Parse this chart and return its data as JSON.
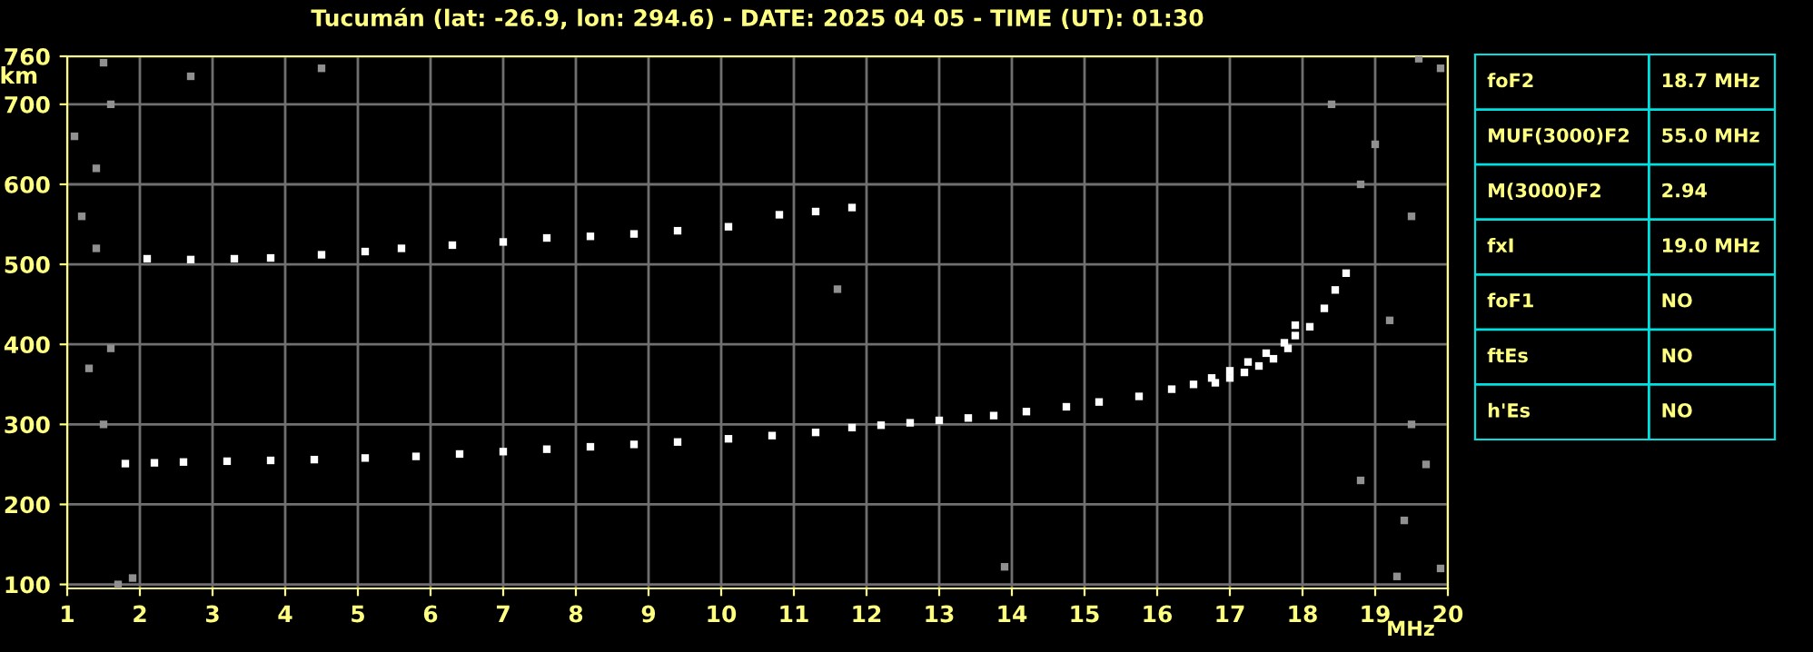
{
  "chart_data": [
    {
      "type": "scatter",
      "title": "Tucumán (lat: -26.9, lon: 294.6) - DATE: 2025 04 05 - TIME (UT): 01:30",
      "xlabel": "MHz",
      "ylabel": "km",
      "xlim": [
        1,
        20
      ],
      "ylim": [
        95,
        760
      ],
      "xticks": [
        1,
        2,
        3,
        4,
        5,
        6,
        7,
        8,
        9,
        10,
        11,
        12,
        13,
        14,
        15,
        16,
        17,
        18,
        19,
        20
      ],
      "yticks": [
        100,
        200,
        300,
        400,
        500,
        600,
        700,
        760
      ],
      "grid": true,
      "marker": "square",
      "series": [
        {
          "color": "#ffffff",
          "x": [
            1.8,
            2.2,
            2.6,
            3.2,
            3.8,
            4.4,
            5.1,
            5.8,
            6.4,
            7.0,
            7.6,
            8.2,
            8.8,
            9.4,
            10.1,
            10.7,
            11.3,
            11.8,
            12.2,
            12.6,
            13.0,
            13.4,
            13.75,
            14.2,
            14.75,
            15.2,
            15.75,
            16.2,
            16.5,
            16.75,
            17.0,
            17.25,
            17.5,
            17.75,
            17.9
          ],
          "values": [
            251,
            252,
            253,
            254,
            255,
            256,
            258,
            260,
            263,
            266,
            269,
            272,
            275,
            278,
            282,
            286,
            290,
            296,
            299,
            302,
            305,
            308,
            311,
            316,
            322,
            328,
            335,
            344,
            350,
            358,
            367,
            378,
            389,
            402,
            424
          ]
        },
        {
          "color": "#ffffff",
          "x": [
            16.8,
            17.0,
            17.2,
            17.4,
            17.6,
            17.8,
            17.9,
            18.1,
            18.3,
            18.45,
            18.6
          ],
          "values": [
            352,
            358,
            365,
            373,
            382,
            395,
            411,
            422,
            445,
            468,
            489
          ]
        },
        {
          "color": "#ffffff",
          "x": [
            2.1,
            2.7,
            3.3,
            3.8,
            4.5,
            5.1,
            5.6,
            6.3,
            7.0,
            7.6,
            8.2,
            8.8,
            9.4,
            10.1,
            10.8,
            11.3,
            11.8
          ],
          "values": [
            507,
            506,
            507,
            508,
            512,
            516,
            520,
            524,
            528,
            533,
            535,
            538,
            542,
            547,
            562,
            566,
            571
          ]
        },
        {
          "color": "#909090",
          "x": [
            1.5,
            1.6,
            1.2,
            1.4,
            1.6,
            1.3,
            1.5,
            1.9,
            1.7,
            11.6,
            13.9,
            18.4,
            18.8,
            19.0,
            19.5,
            19.2,
            19.5,
            19.7,
            18.8,
            19.4,
            19.3,
            19.9,
            19.9,
            19.6,
            1.1,
            1.4,
            4.5,
            2.7
          ],
          "values": [
            752,
            700,
            560,
            520,
            395,
            370,
            300,
            108,
            100,
            469,
            122,
            700,
            600,
            650,
            560,
            430,
            300,
            250,
            230,
            180,
            110,
            120,
            745,
            757,
            660,
            620,
            745,
            735
          ]
        }
      ]
    },
    {
      "type": "other",
      "annotations": [
        "foF2",
        "18.7 MHz",
        "MUF(3000)F2",
        "55.0 MHz",
        "M(3000)F2",
        "2.94",
        "fxI",
        "19.0 MHz",
        "foF1",
        "NO",
        "ftEs",
        "NO",
        "h'Es",
        "NO"
      ]
    }
  ]
}
